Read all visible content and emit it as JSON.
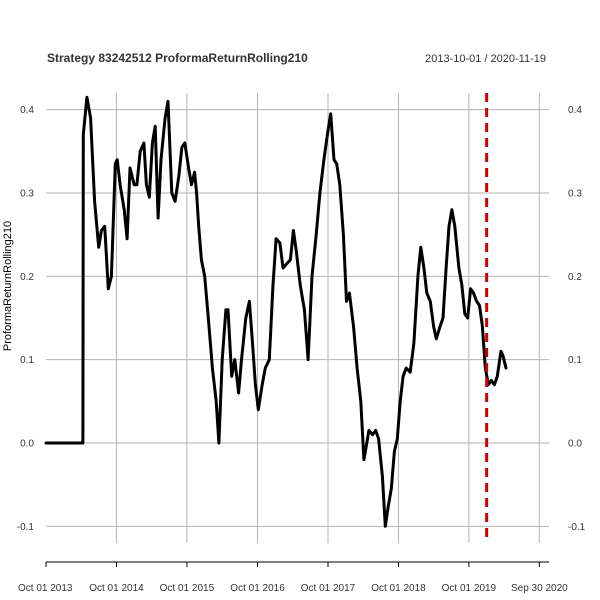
{
  "chart_data": {
    "type": "line",
    "title": "Strategy 83242512 ProformaReturnRolling210",
    "date_range": "2013-10-01 / 2020-11-19",
    "ylabel": "ProformaReturnRolling210",
    "xlabel": "",
    "grid": true,
    "ylim": [
      -0.12,
      0.42
    ],
    "xlim": [
      "2013-10-01",
      "2020-11-19"
    ],
    "y_ticks": [
      -0.1,
      0.0,
      0.1,
      0.2,
      0.3,
      0.4
    ],
    "y_tick_labels": [
      "-0.1",
      "0.0",
      "0.1",
      "0.2",
      "0.3",
      "0.4"
    ],
    "x_ticks": [
      "2013-10-01",
      "2014-10-01",
      "2015-10-01",
      "2016-10-01",
      "2017-10-01",
      "2018-10-01",
      "2019-10-01",
      "2020-09-30"
    ],
    "x_tick_labels": [
      "Oct 01 2013",
      "Oct 01 2014",
      "Oct 01 2015",
      "Oct 01 2016",
      "Oct 01 2017",
      "Oct 01 2018",
      "Oct 01 2019",
      "Sep 30 2020"
    ],
    "series": [
      {
        "color": "#000000",
        "points": [
          [
            "2013-10-01",
            0.0
          ],
          [
            "2014-04-10",
            0.0
          ],
          [
            "2014-04-12",
            0.37
          ],
          [
            "2014-05-01",
            0.415
          ],
          [
            "2014-05-20",
            0.39
          ],
          [
            "2014-06-10",
            0.29
          ],
          [
            "2014-07-01",
            0.235
          ],
          [
            "2014-07-15",
            0.255
          ],
          [
            "2014-08-01",
            0.26
          ],
          [
            "2014-08-20",
            0.185
          ],
          [
            "2014-09-05",
            0.2
          ],
          [
            "2014-09-25",
            0.335
          ],
          [
            "2014-10-05",
            0.34
          ],
          [
            "2014-10-20",
            0.31
          ],
          [
            "2014-11-10",
            0.28
          ],
          [
            "2014-11-25",
            0.245
          ],
          [
            "2014-12-10",
            0.33
          ],
          [
            "2015-01-01",
            0.31
          ],
          [
            "2015-01-15",
            0.31
          ],
          [
            "2015-02-01",
            0.35
          ],
          [
            "2015-02-20",
            0.36
          ],
          [
            "2015-03-05",
            0.31
          ],
          [
            "2015-03-20",
            0.295
          ],
          [
            "2015-04-05",
            0.36
          ],
          [
            "2015-04-20",
            0.38
          ],
          [
            "2015-05-05",
            0.27
          ],
          [
            "2015-05-20",
            0.34
          ],
          [
            "2015-06-10",
            0.39
          ],
          [
            "2015-06-25",
            0.41
          ],
          [
            "2015-07-15",
            0.3
          ],
          [
            "2015-08-01",
            0.29
          ],
          [
            "2015-08-20",
            0.32
          ],
          [
            "2015-09-05",
            0.355
          ],
          [
            "2015-09-20",
            0.36
          ],
          [
            "2015-10-10",
            0.33
          ],
          [
            "2015-10-25",
            0.31
          ],
          [
            "2015-11-10",
            0.325
          ],
          [
            "2015-11-20",
            0.3
          ],
          [
            "2015-12-01",
            0.26
          ],
          [
            "2015-12-15",
            0.22
          ],
          [
            "2016-01-01",
            0.2
          ],
          [
            "2016-01-20",
            0.15
          ],
          [
            "2016-02-10",
            0.09
          ],
          [
            "2016-03-01",
            0.05
          ],
          [
            "2016-03-15",
            0.0
          ],
          [
            "2016-04-01",
            0.1
          ],
          [
            "2016-04-20",
            0.16
          ],
          [
            "2016-05-01",
            0.16
          ],
          [
            "2016-05-20",
            0.08
          ],
          [
            "2016-06-05",
            0.1
          ],
          [
            "2016-06-25",
            0.06
          ],
          [
            "2016-07-10",
            0.1
          ],
          [
            "2016-08-01",
            0.15
          ],
          [
            "2016-08-20",
            0.17
          ],
          [
            "2016-09-05",
            0.12
          ],
          [
            "2016-09-20",
            0.07
          ],
          [
            "2016-10-05",
            0.04
          ],
          [
            "2016-10-25",
            0.07
          ],
          [
            "2016-11-10",
            0.09
          ],
          [
            "2016-12-01",
            0.1
          ],
          [
            "2016-12-20",
            0.19
          ],
          [
            "2017-01-05",
            0.245
          ],
          [
            "2017-01-25",
            0.24
          ],
          [
            "2017-02-10",
            0.21
          ],
          [
            "2017-03-01",
            0.215
          ],
          [
            "2017-03-20",
            0.22
          ],
          [
            "2017-04-05",
            0.255
          ],
          [
            "2017-04-20",
            0.23
          ],
          [
            "2017-05-10",
            0.19
          ],
          [
            "2017-06-01",
            0.16
          ],
          [
            "2017-06-20",
            0.1
          ],
          [
            "2017-07-10",
            0.2
          ],
          [
            "2017-08-01",
            0.25
          ],
          [
            "2017-08-20",
            0.3
          ],
          [
            "2017-09-10",
            0.34
          ],
          [
            "2017-10-01",
            0.375
          ],
          [
            "2017-10-15",
            0.395
          ],
          [
            "2017-11-01",
            0.34
          ],
          [
            "2017-11-15",
            0.335
          ],
          [
            "2017-12-01",
            0.31
          ],
          [
            "2017-12-20",
            0.25
          ],
          [
            "2018-01-05",
            0.17
          ],
          [
            "2018-01-20",
            0.18
          ],
          [
            "2018-02-10",
            0.14
          ],
          [
            "2018-03-01",
            0.09
          ],
          [
            "2018-03-20",
            0.05
          ],
          [
            "2018-04-05",
            -0.02
          ],
          [
            "2018-04-20",
            0.0
          ],
          [
            "2018-05-01",
            0.015
          ],
          [
            "2018-05-20",
            0.01
          ],
          [
            "2018-06-05",
            0.015
          ],
          [
            "2018-06-20",
            0.005
          ],
          [
            "2018-07-10",
            -0.04
          ],
          [
            "2018-07-25",
            -0.1
          ],
          [
            "2018-08-10",
            -0.075
          ],
          [
            "2018-08-25",
            -0.055
          ],
          [
            "2018-09-10",
            -0.01
          ],
          [
            "2018-09-25",
            0.005
          ],
          [
            "2018-10-10",
            0.05
          ],
          [
            "2018-10-25",
            0.08
          ],
          [
            "2018-11-10",
            0.09
          ],
          [
            "2018-12-01",
            0.085
          ],
          [
            "2018-12-20",
            0.12
          ],
          [
            "2019-01-10",
            0.2
          ],
          [
            "2019-01-25",
            0.235
          ],
          [
            "2019-02-10",
            0.21
          ],
          [
            "2019-02-25",
            0.18
          ],
          [
            "2019-03-15",
            0.17
          ],
          [
            "2019-04-01",
            0.14
          ],
          [
            "2019-04-15",
            0.125
          ],
          [
            "2019-05-05",
            0.14
          ],
          [
            "2019-05-20",
            0.15
          ],
          [
            "2019-06-05",
            0.21
          ],
          [
            "2019-06-20",
            0.26
          ],
          [
            "2019-07-05",
            0.28
          ],
          [
            "2019-07-20",
            0.26
          ],
          [
            "2019-08-10",
            0.21
          ],
          [
            "2019-08-25",
            0.19
          ],
          [
            "2019-09-10",
            0.155
          ],
          [
            "2019-09-25",
            0.15
          ],
          [
            "2019-10-10",
            0.185
          ],
          [
            "2019-10-25",
            0.18
          ],
          [
            "2019-11-10",
            0.17
          ],
          [
            "2019-11-25",
            0.165
          ],
          [
            "2019-12-10",
            0.14
          ],
          [
            "2019-12-25",
            0.09
          ],
          [
            "2020-01-10",
            0.07
          ],
          [
            "2020-01-25",
            0.075
          ],
          [
            "2020-02-10",
            0.07
          ],
          [
            "2020-02-25",
            0.08
          ],
          [
            "2020-03-15",
            0.11
          ],
          [
            "2020-03-25",
            0.105
          ],
          [
            "2020-04-10",
            0.09
          ]
        ]
      }
    ],
    "vertical_line": {
      "x": "2020-01-01",
      "color": "#cc0000",
      "style": "dashed"
    }
  }
}
